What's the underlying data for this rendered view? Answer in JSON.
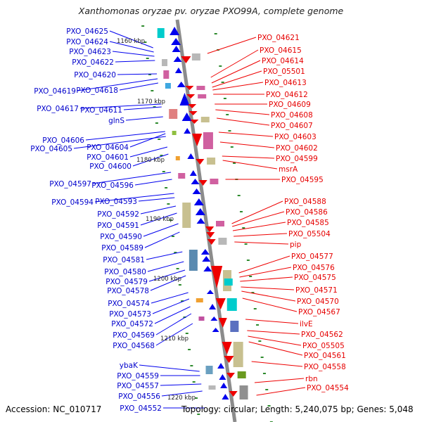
{
  "title": "Xanthomonas oryzae pv. oryzae PXO99A, complete genome",
  "accession": "Accession: NC_010717",
  "summary": "Topology: circular; Length: 5,240,075 bp; Genes: 5,048",
  "colors": {
    "left_strand": "#0000ee",
    "right_strand": "#ee0000",
    "axis": "#8c8c8c",
    "tick": "#2e8b2e"
  },
  "scale_labels": [
    "1160 kbp",
    "1170 kbp",
    "1180 kbp",
    "1190 kbp",
    "1200 kbp",
    "1210 kbp",
    "1220 kbp"
  ],
  "left_genes": [
    "PXO_04625",
    "PXO_04624",
    "PXO_04623",
    "PXO_04622",
    "PXO_04620",
    "PXO_04619",
    "PXO_04618",
    "PXO_04617",
    "PXO_04611",
    "glnS",
    "PXO_04606",
    "PXO_04604",
    "PXO_04605",
    "PXO_04601",
    "PXO_04600",
    "PXO_04597",
    "PXO_04596",
    "PXO_04594",
    "PXO_04593",
    "PXO_04592",
    "PXO_04591",
    "PXO_04590",
    "PXO_04589",
    "PXO_04581",
    "PXO_04580",
    "PXO_04579",
    "PXO_04578",
    "PXO_04574",
    "PXO_04573",
    "PXO_04572",
    "PXO_04569",
    "PXO_04568",
    "ybaK",
    "PXO_04559",
    "PXO_04557",
    "PXO_04556",
    "PXO_04552"
  ],
  "right_genes": [
    "PXO_04621",
    "PXO_04615",
    "PXO_04614",
    "PXO_05501",
    "PXO_04613",
    "PXO_04612",
    "PXO_04609",
    "PXO_04608",
    "PXO_04607",
    "PXO_04603",
    "PXO_04602",
    "PXO_04599",
    "msrA",
    "PXO_04595",
    "PXO_04588",
    "PXO_04586",
    "PXO_04585",
    "PXO_05504",
    "pip",
    "PXO_04577",
    "PXO_04576",
    "PXO_04575",
    "PXO_04571",
    "PXO_04570",
    "PXO_04567",
    "ilvE",
    "PXO_04562",
    "PXO_05505",
    "PXO_04561",
    "PXO_04558",
    "rbn",
    "PXO_04554"
  ]
}
